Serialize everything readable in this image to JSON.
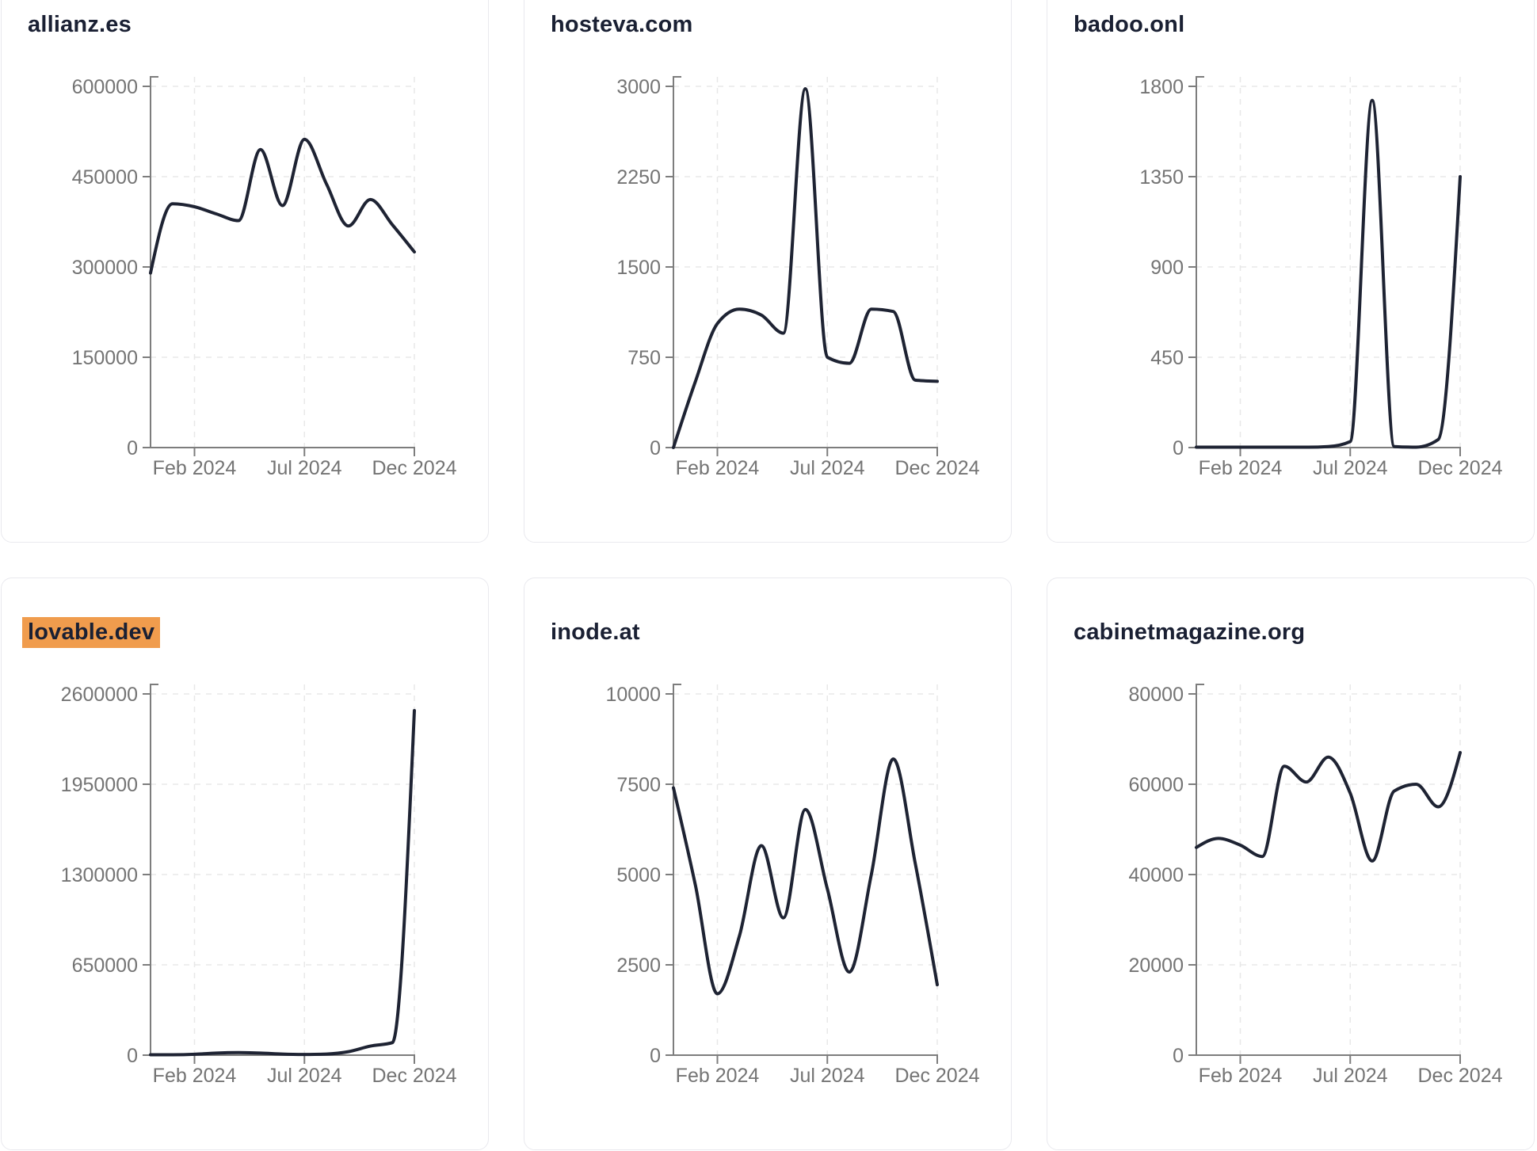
{
  "page": {
    "background_color": "#ffffff",
    "card_border_color": "#e9e9ee",
    "highlight_color": "#f09c4d",
    "line_color": "#1e2333",
    "grid_color": "#e8e8e8",
    "axis_color": "#7d7d7d",
    "tick_text_color": "#747474",
    "title_text_color": "#1a2033"
  },
  "chart_data": [
    {
      "type": "line",
      "title": "allianz.es",
      "highlighted": false,
      "x": [
        "Dec 2023",
        "Jan 2024",
        "Feb 2024",
        "Mar 2024",
        "Apr 2024",
        "May 2024",
        "Jun 2024",
        "Jul 2024",
        "Aug 2024",
        "Sep 2024",
        "Oct 2024",
        "Nov 2024",
        "Dec 2024"
      ],
      "values": [
        290000,
        405000,
        400000,
        388000,
        377000,
        495000,
        402000,
        512000,
        438000,
        368000,
        412000,
        370000,
        325000
      ],
      "ylim": [
        0,
        600000
      ],
      "y_ticks": [
        0,
        150000,
        300000,
        450000,
        600000
      ],
      "x_tick_labels": [
        "Feb 2024",
        "Jul 2024",
        "Dec 2024"
      ],
      "x_tick_months": [
        2,
        7,
        12
      ],
      "grid": "dashed"
    },
    {
      "type": "line",
      "title": "hosteva.com",
      "highlighted": false,
      "x": [
        "Dec 2023",
        "Jan 2024",
        "Feb 2024",
        "Mar 2024",
        "Apr 2024",
        "May 2024",
        "Jun 2024",
        "Jul 2024",
        "Aug 2024",
        "Sep 2024",
        "Oct 2024",
        "Nov 2024",
        "Dec 2024"
      ],
      "values": [
        0,
        550,
        1030,
        1150,
        1100,
        950,
        2980,
        750,
        700,
        1150,
        1130,
        560,
        550
      ],
      "ylim": [
        0,
        3000
      ],
      "y_ticks": [
        0,
        750,
        1500,
        2250,
        3000
      ],
      "x_tick_labels": [
        "Feb 2024",
        "Jul 2024",
        "Dec 2024"
      ],
      "x_tick_months": [
        2,
        7,
        12
      ],
      "grid": "dashed"
    },
    {
      "type": "line",
      "title": "badoo.onl",
      "highlighted": false,
      "x": [
        "Dec 2023",
        "Jan 2024",
        "Feb 2024",
        "Mar 2024",
        "Apr 2024",
        "May 2024",
        "Jun 2024",
        "Jul 2024",
        "Aug 2024",
        "Sep 2024",
        "Oct 2024",
        "Nov 2024",
        "Dec 2024"
      ],
      "values": [
        2,
        2,
        2,
        2,
        2,
        2,
        5,
        30,
        1730,
        5,
        2,
        40,
        1350
      ],
      "ylim": [
        0,
        1800
      ],
      "y_ticks": [
        0,
        450,
        900,
        1350,
        1800
      ],
      "x_tick_labels": [
        "Feb 2024",
        "Jul 2024",
        "Dec 2024"
      ],
      "x_tick_months": [
        2,
        7,
        12
      ],
      "grid": "dashed"
    },
    {
      "type": "line",
      "title": "lovable.dev",
      "highlighted": true,
      "x": [
        "Dec 2023",
        "Jan 2024",
        "Feb 2024",
        "Mar 2024",
        "Apr 2024",
        "May 2024",
        "Jun 2024",
        "Jul 2024",
        "Aug 2024",
        "Sep 2024",
        "Oct 2024",
        "Nov 2024",
        "Dec 2024"
      ],
      "values": [
        3000,
        3000,
        6000,
        15000,
        18000,
        15000,
        8000,
        5000,
        8000,
        25000,
        65000,
        90000,
        2480000
      ],
      "ylim": [
        0,
        2600000
      ],
      "y_ticks": [
        0,
        650000,
        1300000,
        1950000,
        2600000
      ],
      "x_tick_labels": [
        "Feb 2024",
        "Jul 2024",
        "Dec 2024"
      ],
      "x_tick_months": [
        2,
        7,
        12
      ],
      "grid": "dashed"
    },
    {
      "type": "line",
      "title": "inode.at",
      "highlighted": false,
      "x": [
        "Dec 2023",
        "Jan 2024",
        "Feb 2024",
        "Mar 2024",
        "Apr 2024",
        "May 2024",
        "Jun 2024",
        "Jul 2024",
        "Aug 2024",
        "Sep 2024",
        "Oct 2024",
        "Nov 2024",
        "Dec 2024"
      ],
      "values": [
        7400,
        4700,
        1700,
        3300,
        5800,
        3800,
        6800,
        4600,
        2300,
        5000,
        8200,
        5300,
        1950
      ],
      "ylim": [
        0,
        10000
      ],
      "y_ticks": [
        0,
        2500,
        5000,
        7500,
        10000
      ],
      "x_tick_labels": [
        "Feb 2024",
        "Jul 2024",
        "Dec 2024"
      ],
      "x_tick_months": [
        2,
        7,
        12
      ],
      "grid": "dashed"
    },
    {
      "type": "line",
      "title": "cabinetmagazine.org",
      "highlighted": false,
      "x": [
        "Dec 2023",
        "Jan 2024",
        "Feb 2024",
        "Mar 2024",
        "Apr 2024",
        "May 2024",
        "Jun 2024",
        "Jul 2024",
        "Aug 2024",
        "Sep 2024",
        "Oct 2024",
        "Nov 2024",
        "Dec 2024"
      ],
      "values": [
        46000,
        48000,
        46500,
        44000,
        64000,
        60500,
        66000,
        58000,
        43000,
        58500,
        60000,
        55000,
        67000
      ],
      "ylim": [
        0,
        80000
      ],
      "y_ticks": [
        0,
        20000,
        40000,
        60000,
        80000
      ],
      "x_tick_labels": [
        "Feb 2024",
        "Jul 2024",
        "Dec 2024"
      ],
      "x_tick_months": [
        2,
        7,
        12
      ],
      "grid": "dashed"
    }
  ]
}
